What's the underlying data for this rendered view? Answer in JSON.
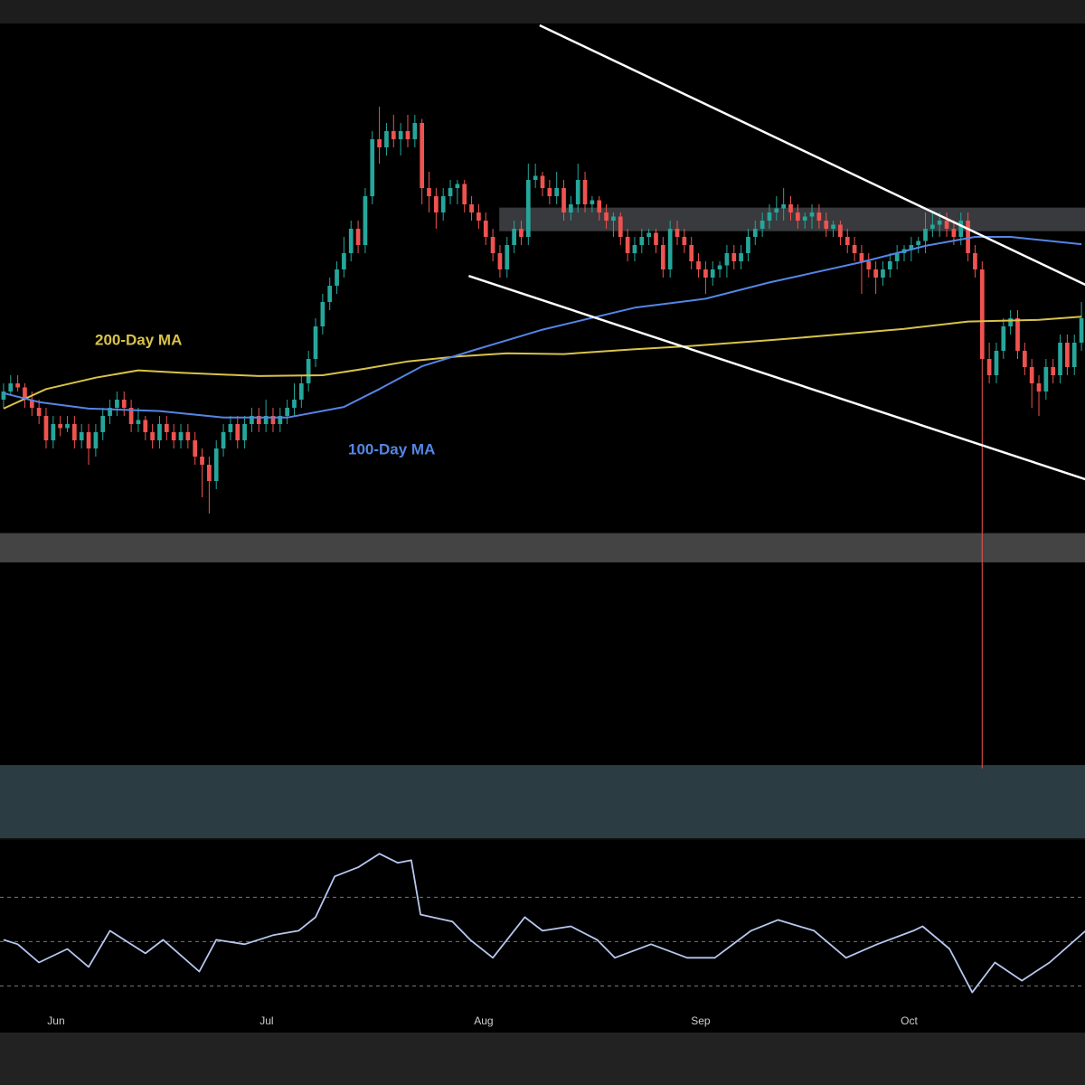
{
  "chart_data": [
    {
      "type": "candlestick",
      "xlim": [
        -0.5,
        152.5
      ],
      "ylim": [
        0,
        100
      ],
      "up_color": "#26a69a",
      "down_color": "#ef5350",
      "candles": [
        [
          54,
          56,
          53,
          55
        ],
        [
          55,
          57,
          54.5,
          56
        ],
        [
          56,
          57,
          55,
          55.5
        ],
        [
          55.5,
          56,
          53,
          54
        ],
        [
          54,
          55,
          52,
          53
        ],
        [
          53,
          54,
          51,
          52
        ],
        [
          52,
          53,
          48,
          49
        ],
        [
          49,
          52,
          48,
          51
        ],
        [
          51,
          52,
          49.5,
          50.5
        ],
        [
          50.5,
          52,
          50,
          51
        ],
        [
          51,
          52,
          48,
          49
        ],
        [
          49,
          51,
          48,
          50
        ],
        [
          50,
          51,
          46,
          48
        ],
        [
          48,
          51,
          47,
          50
        ],
        [
          50,
          53,
          49,
          52
        ],
        [
          52,
          54,
          51,
          53
        ],
        [
          53,
          55,
          52,
          54
        ],
        [
          54,
          55,
          52,
          53
        ],
        [
          53,
          54,
          50,
          51
        ],
        [
          51,
          53,
          50,
          51.5
        ],
        [
          51.5,
          52,
          49,
          50
        ],
        [
          50,
          51,
          48,
          49
        ],
        [
          49,
          52,
          48,
          51
        ],
        [
          51,
          52,
          49,
          50
        ],
        [
          50,
          51,
          48,
          49
        ],
        [
          49,
          51,
          48,
          50
        ],
        [
          50,
          51,
          48,
          49
        ],
        [
          49,
          50,
          46,
          47
        ],
        [
          47,
          48,
          42,
          46
        ],
        [
          46,
          47,
          40,
          44
        ],
        [
          44,
          49,
          43,
          48
        ],
        [
          48,
          51,
          47,
          50
        ],
        [
          50,
          52,
          49,
          51
        ],
        [
          51,
          52,
          48,
          49
        ],
        [
          49,
          52,
          48,
          51
        ],
        [
          51,
          53,
          50,
          52
        ],
        [
          52,
          53,
          50,
          51
        ],
        [
          51,
          54,
          50,
          52
        ],
        [
          52,
          53,
          50,
          51
        ],
        [
          51,
          53,
          50,
          52
        ],
        [
          52,
          54,
          51,
          53
        ],
        [
          53,
          56,
          52,
          54
        ],
        [
          54,
          57,
          53,
          56
        ],
        [
          56,
          60,
          55,
          59
        ],
        [
          59,
          64,
          58,
          63
        ],
        [
          63,
          67,
          62,
          66
        ],
        [
          66,
          69,
          65,
          68
        ],
        [
          68,
          71,
          67,
          70
        ],
        [
          70,
          74,
          69,
          72
        ],
        [
          72,
          76,
          71,
          75
        ],
        [
          75,
          76,
          72,
          73
        ],
        [
          73,
          80,
          72,
          79
        ],
        [
          79,
          87,
          78,
          86
        ],
        [
          86,
          90,
          83,
          85
        ],
        [
          85,
          88,
          84,
          87
        ],
        [
          87,
          89,
          85,
          86
        ],
        [
          86,
          88,
          84,
          87
        ],
        [
          87,
          89,
          85,
          86
        ],
        [
          86,
          89,
          85,
          88
        ],
        [
          88,
          88.5,
          78,
          80
        ],
        [
          80,
          82,
          77,
          79
        ],
        [
          79,
          80,
          75,
          77
        ],
        [
          77,
          80,
          76,
          79
        ],
        [
          79,
          81,
          78,
          80
        ],
        [
          80,
          81,
          78,
          80.5
        ],
        [
          80.5,
          81,
          77,
          78
        ],
        [
          78,
          79,
          76,
          77
        ],
        [
          77,
          78,
          75,
          76
        ],
        [
          76,
          77,
          73,
          74
        ],
        [
          74,
          75,
          71,
          72
        ],
        [
          72,
          73,
          69,
          70
        ],
        [
          70,
          74,
          69,
          73
        ],
        [
          73,
          76,
          72,
          75
        ],
        [
          75,
          76,
          73,
          74
        ],
        [
          74,
          83,
          73,
          81
        ],
        [
          81,
          83,
          80,
          81.5
        ],
        [
          81.5,
          82,
          79,
          80
        ],
        [
          80,
          81,
          78,
          79
        ],
        [
          79,
          82,
          78,
          80
        ],
        [
          80,
          81,
          76,
          77
        ],
        [
          77,
          79,
          76,
          78
        ],
        [
          78,
          83,
          77,
          81
        ],
        [
          81,
          82,
          77,
          78
        ],
        [
          78,
          79,
          77,
          78.5
        ],
        [
          78.5,
          79,
          76,
          77
        ],
        [
          77,
          78,
          75,
          76
        ],
        [
          76,
          77,
          74,
          76.5
        ],
        [
          76.5,
          77,
          73,
          74
        ],
        [
          74,
          75,
          71,
          72
        ],
        [
          72,
          74,
          71,
          73
        ],
        [
          73,
          75,
          72,
          74
        ],
        [
          74,
          75,
          73,
          74.5
        ],
        [
          74.5,
          75,
          72,
          73
        ],
        [
          73,
          74,
          69,
          70
        ],
        [
          70,
          76,
          69,
          75
        ],
        [
          75,
          76,
          73,
          74
        ],
        [
          74,
          75,
          72,
          73
        ],
        [
          73,
          74,
          70,
          71
        ],
        [
          71,
          72,
          69,
          70
        ],
        [
          70,
          71,
          67,
          69
        ],
        [
          69,
          71,
          68,
          70
        ],
        [
          70,
          71,
          69,
          70.5
        ],
        [
          70.5,
          73,
          69,
          72
        ],
        [
          72,
          73,
          70,
          71
        ],
        [
          71,
          73,
          70,
          72
        ],
        [
          72,
          75,
          71,
          74
        ],
        [
          74,
          76,
          73,
          75
        ],
        [
          75,
          77,
          74,
          76
        ],
        [
          76,
          78,
          75,
          77
        ],
        [
          77,
          79,
          76,
          77.5
        ],
        [
          77.5,
          80,
          76,
          78
        ],
        [
          78,
          79,
          76,
          77
        ],
        [
          77,
          78,
          75,
          76
        ],
        [
          76,
          77,
          75,
          76.5
        ],
        [
          76.5,
          78,
          75,
          77
        ],
        [
          77,
          78,
          75,
          76
        ],
        [
          76,
          77,
          74,
          75
        ],
        [
          75,
          76,
          74,
          75.5
        ],
        [
          75.5,
          76,
          73,
          74
        ],
        [
          74,
          75,
          72,
          73
        ],
        [
          73,
          74,
          71,
          72
        ],
        [
          72,
          73,
          67,
          71
        ],
        [
          71,
          72,
          69,
          70
        ],
        [
          70,
          71,
          67,
          69
        ],
        [
          69,
          71,
          68,
          70
        ],
        [
          70,
          72,
          69,
          71
        ],
        [
          71,
          73,
          70,
          72
        ],
        [
          72,
          73,
          71,
          72.5
        ],
        [
          72.5,
          74,
          71,
          73
        ],
        [
          73,
          74,
          72,
          73.5
        ],
        [
          73.5,
          77,
          72,
          75
        ],
        [
          75,
          77,
          74,
          75.5
        ],
        [
          75.5,
          77,
          74,
          76
        ],
        [
          76,
          77,
          74,
          75
        ],
        [
          75,
          76,
          73,
          74
        ],
        [
          74,
          77,
          73,
          76
        ],
        [
          76,
          77,
          71,
          72
        ],
        [
          72,
          73,
          69,
          70
        ],
        [
          70,
          71,
          8.7,
          59
        ],
        [
          59,
          61,
          56,
          57
        ],
        [
          57,
          61,
          56,
          60
        ],
        [
          60,
          64,
          59,
          63
        ],
        [
          63,
          65,
          62,
          64
        ],
        [
          64,
          65,
          59,
          60
        ],
        [
          60,
          61,
          57,
          58
        ],
        [
          58,
          59,
          53,
          56
        ],
        [
          56,
          57,
          52,
          55
        ],
        [
          55,
          59,
          54,
          58
        ],
        [
          58,
          59,
          56,
          57
        ],
        [
          57,
          62,
          56,
          61
        ],
        [
          61,
          62,
          57,
          58
        ],
        [
          58,
          62,
          57,
          61
        ],
        [
          61,
          66,
          60,
          64
        ]
      ],
      "series": [
        {
          "name": "200-Day MA",
          "color": "#d8c34a",
          "x": [
            0,
            6,
            13,
            19,
            25,
            36,
            45,
            51,
            57,
            64,
            71,
            79,
            89,
            97,
            108,
            115,
            127,
            136,
            146,
            152
          ],
          "values": [
            52.9,
            55.3,
            56.7,
            57.6,
            57.3,
            56.9,
            57.0,
            57.8,
            58.7,
            59.3,
            59.7,
            59.6,
            60.2,
            60.6,
            61.3,
            61.8,
            62.7,
            63.6,
            63.8,
            64.2
          ]
        },
        {
          "name": "100-Day MA",
          "color": "#5585e6",
          "x": [
            0,
            5,
            12,
            22,
            31,
            40,
            48,
            53,
            59,
            66,
            76,
            89,
            99,
            108,
            121,
            130,
            137,
            142,
            152
          ],
          "values": [
            54.8,
            53.7,
            52.9,
            52.6,
            51.8,
            51.8,
            53.1,
            55.3,
            58.1,
            60.0,
            62.6,
            65.3,
            66.4,
            68.4,
            70.9,
            72.9,
            74.0,
            74.0,
            73.1
          ]
        }
      ],
      "trendlines": [
        {
          "x": [
            75.6,
            152.6
          ],
          "values": [
            100,
            68.1
          ]
        },
        {
          "x": [
            65.6,
            152.6
          ],
          "values": [
            69.2,
            44.2
          ]
        }
      ],
      "zones": [
        {
          "from": 74.7,
          "to": 77.6,
          "x_start": 69.9,
          "color": "rgba(200,210,220,0.28)"
        },
        {
          "from": 34.0,
          "to": 37.6,
          "color": "#444444"
        },
        {
          "from": 0.1,
          "to": 9.1,
          "color": "#2b3c42"
        }
      ]
    },
    {
      "type": "line",
      "xlim": [
        -0.5,
        152.5
      ],
      "ylim": [
        20,
        95
      ],
      "levels": [
        70,
        50,
        30
      ],
      "xticks": [
        {
          "value": 7.4,
          "label": "Jun"
        },
        {
          "value": 37.1,
          "label": "Jul"
        },
        {
          "value": 67.7,
          "label": "Aug"
        },
        {
          "value": 98.3,
          "label": "Sep"
        },
        {
          "value": 127.7,
          "label": "Oct"
        }
      ],
      "series": [
        {
          "color": "#b7c7ef",
          "x": [
            0,
            2,
            5,
            9,
            12,
            15,
            20,
            22.5,
            27.6,
            30,
            34,
            38,
            41.6,
            44,
            46.7,
            50,
            53,
            55.6,
            57.5,
            58.8,
            63.3,
            65.8,
            69,
            73.5,
            76,
            80,
            83.7,
            86.2,
            91.3,
            96.4,
            100.3,
            105.4,
            109.2,
            114.3,
            118.8,
            123.2,
            128.3,
            129.6,
            133.4,
            136.6,
            139.8,
            143.6,
            147.5,
            152.6
          ],
          "values": [
            50.8,
            48.8,
            40.6,
            46.7,
            38.6,
            54.9,
            44.7,
            50.8,
            36.5,
            50.8,
            48.8,
            52.9,
            54.9,
            61,
            79.4,
            83.5,
            89.6,
            85.5,
            86.7,
            62.2,
            59,
            50.8,
            42.7,
            61,
            54.9,
            56.9,
            50.8,
            42.7,
            48.8,
            42.7,
            42.7,
            54.9,
            59.8,
            54.9,
            42.7,
            48.8,
            54.9,
            56.9,
            46.7,
            27.1,
            40.6,
            32.4,
            40.6,
            54.9
          ]
        }
      ]
    }
  ]
}
